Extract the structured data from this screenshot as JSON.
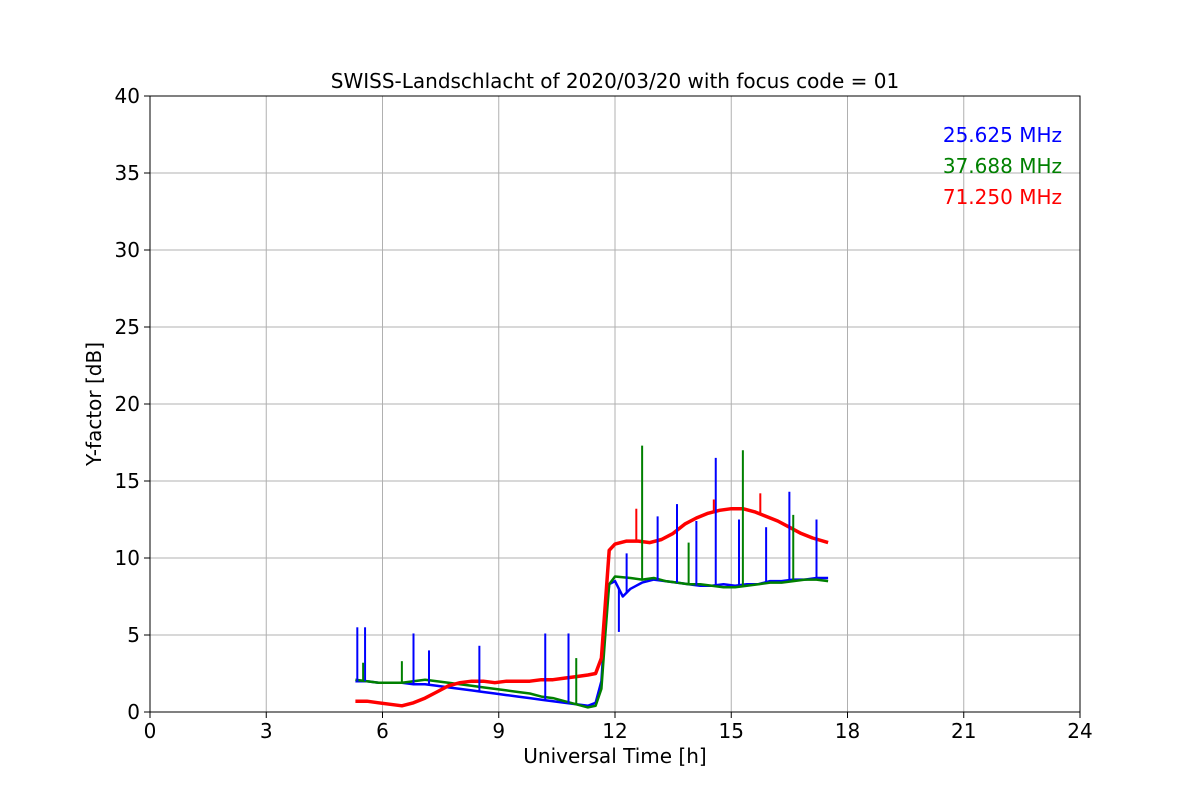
{
  "chart_data": {
    "type": "line",
    "title": "SWISS-Landschlacht of 2020/03/20 with focus code = 01",
    "xlabel": "Universal Time [h]",
    "ylabel": "Y-factor [dB]",
    "xlim": [
      0,
      24
    ],
    "ylim": [
      0,
      40
    ],
    "xticks": [
      0,
      3,
      6,
      9,
      12,
      15,
      18,
      21,
      24
    ],
    "yticks": [
      0,
      5,
      10,
      15,
      20,
      25,
      30,
      35,
      40
    ],
    "grid": true,
    "legend_placement": "top-right",
    "series": [
      {
        "name": "25.625 MHz",
        "color": "#0000ff",
        "x": [
          5.3,
          5.6,
          5.9,
          6.2,
          6.5,
          6.8,
          7.1,
          7.4,
          7.7,
          8.0,
          8.3,
          8.6,
          8.9,
          9.2,
          9.5,
          9.8,
          10.1,
          10.4,
          10.7,
          11.0,
          11.3,
          11.5,
          11.65,
          11.75,
          11.85,
          12.0,
          12.2,
          12.4,
          12.7,
          13.0,
          13.3,
          13.6,
          13.9,
          14.2,
          14.5,
          14.8,
          15.1,
          15.4,
          15.7,
          16.0,
          16.3,
          16.6,
          16.9,
          17.2,
          17.5
        ],
        "y": [
          2.0,
          2.0,
          1.9,
          1.9,
          1.9,
          1.8,
          1.8,
          1.7,
          1.6,
          1.5,
          1.4,
          1.3,
          1.2,
          1.1,
          1.0,
          0.9,
          0.8,
          0.7,
          0.6,
          0.5,
          0.4,
          0.6,
          2.0,
          6.0,
          8.3,
          8.5,
          7.5,
          8.0,
          8.4,
          8.6,
          8.5,
          8.4,
          8.3,
          8.2,
          8.2,
          8.3,
          8.2,
          8.3,
          8.3,
          8.5,
          8.5,
          8.6,
          8.6,
          8.7,
          8.7
        ]
      },
      {
        "name": "37.688 MHz",
        "color": "#008000",
        "x": [
          5.3,
          5.6,
          5.9,
          6.2,
          6.5,
          6.8,
          7.1,
          7.4,
          7.7,
          8.0,
          8.3,
          8.6,
          8.9,
          9.2,
          9.5,
          9.8,
          10.1,
          10.4,
          10.7,
          11.0,
          11.3,
          11.5,
          11.65,
          11.75,
          11.85,
          12.0,
          12.4,
          12.7,
          13.0,
          13.3,
          13.6,
          13.9,
          14.2,
          14.5,
          14.8,
          15.1,
          15.4,
          15.7,
          16.0,
          16.3,
          16.6,
          16.9,
          17.2,
          17.5
        ],
        "y": [
          2.1,
          2.0,
          1.9,
          1.9,
          1.9,
          2.0,
          2.1,
          2.0,
          1.9,
          1.8,
          1.7,
          1.6,
          1.5,
          1.4,
          1.3,
          1.2,
          1.0,
          0.9,
          0.7,
          0.5,
          0.3,
          0.4,
          1.5,
          5.0,
          8.3,
          8.8,
          8.7,
          8.6,
          8.7,
          8.5,
          8.4,
          8.3,
          8.3,
          8.2,
          8.1,
          8.1,
          8.2,
          8.3,
          8.4,
          8.4,
          8.5,
          8.6,
          8.6,
          8.5
        ]
      },
      {
        "name": "71.250 MHz",
        "color": "#ff0000",
        "x": [
          5.3,
          5.6,
          5.9,
          6.2,
          6.5,
          6.8,
          7.1,
          7.4,
          7.7,
          8.0,
          8.3,
          8.6,
          8.9,
          9.2,
          9.5,
          9.8,
          10.1,
          10.4,
          10.7,
          11.0,
          11.3,
          11.5,
          11.65,
          11.75,
          11.85,
          12.0,
          12.3,
          12.6,
          12.9,
          13.2,
          13.5,
          13.8,
          14.1,
          14.4,
          14.7,
          15.0,
          15.3,
          15.6,
          15.9,
          16.2,
          16.5,
          16.8,
          17.1,
          17.5
        ],
        "y": [
          0.7,
          0.7,
          0.6,
          0.5,
          0.4,
          0.6,
          0.9,
          1.3,
          1.7,
          1.9,
          2.0,
          2.0,
          1.9,
          2.0,
          2.0,
          2.0,
          2.1,
          2.1,
          2.2,
          2.3,
          2.4,
          2.5,
          3.5,
          7.0,
          10.5,
          10.9,
          11.1,
          11.1,
          11.0,
          11.2,
          11.6,
          12.2,
          12.6,
          12.9,
          13.1,
          13.2,
          13.2,
          13.0,
          12.7,
          12.4,
          12.0,
          11.6,
          11.3,
          11.0
        ]
      }
    ],
    "spikes": [
      {
        "series": 0,
        "x": 5.35,
        "y": 5.5
      },
      {
        "series": 0,
        "x": 5.55,
        "y": 5.5
      },
      {
        "series": 0,
        "x": 6.8,
        "y": 5.1
      },
      {
        "series": 0,
        "x": 7.2,
        "y": 4.0
      },
      {
        "series": 0,
        "x": 8.5,
        "y": 4.3
      },
      {
        "series": 0,
        "x": 10.2,
        "y": 5.1
      },
      {
        "series": 0,
        "x": 10.8,
        "y": 5.1
      },
      {
        "series": 0,
        "x": 12.1,
        "y": 5.2
      },
      {
        "series": 0,
        "x": 12.3,
        "y": 10.3
      },
      {
        "series": 0,
        "x": 13.1,
        "y": 12.7
      },
      {
        "series": 0,
        "x": 13.6,
        "y": 13.5
      },
      {
        "series": 0,
        "x": 14.1,
        "y": 12.4
      },
      {
        "series": 0,
        "x": 14.6,
        "y": 16.5
      },
      {
        "series": 0,
        "x": 15.2,
        "y": 12.5
      },
      {
        "series": 0,
        "x": 15.9,
        "y": 12.0
      },
      {
        "series": 0,
        "x": 16.5,
        "y": 14.3
      },
      {
        "series": 0,
        "x": 17.2,
        "y": 12.5
      },
      {
        "series": 1,
        "x": 5.5,
        "y": 3.2
      },
      {
        "series": 1,
        "x": 6.5,
        "y": 3.3
      },
      {
        "series": 1,
        "x": 11.0,
        "y": 3.5
      },
      {
        "series": 1,
        "x": 12.7,
        "y": 17.3
      },
      {
        "series": 1,
        "x": 13.9,
        "y": 11.0
      },
      {
        "series": 1,
        "x": 15.3,
        "y": 17.0
      },
      {
        "series": 1,
        "x": 16.6,
        "y": 12.8
      },
      {
        "series": 2,
        "x": 12.55,
        "y": 13.2
      },
      {
        "series": 2,
        "x": 14.55,
        "y": 13.8
      },
      {
        "series": 2,
        "x": 15.75,
        "y": 14.2
      }
    ]
  }
}
